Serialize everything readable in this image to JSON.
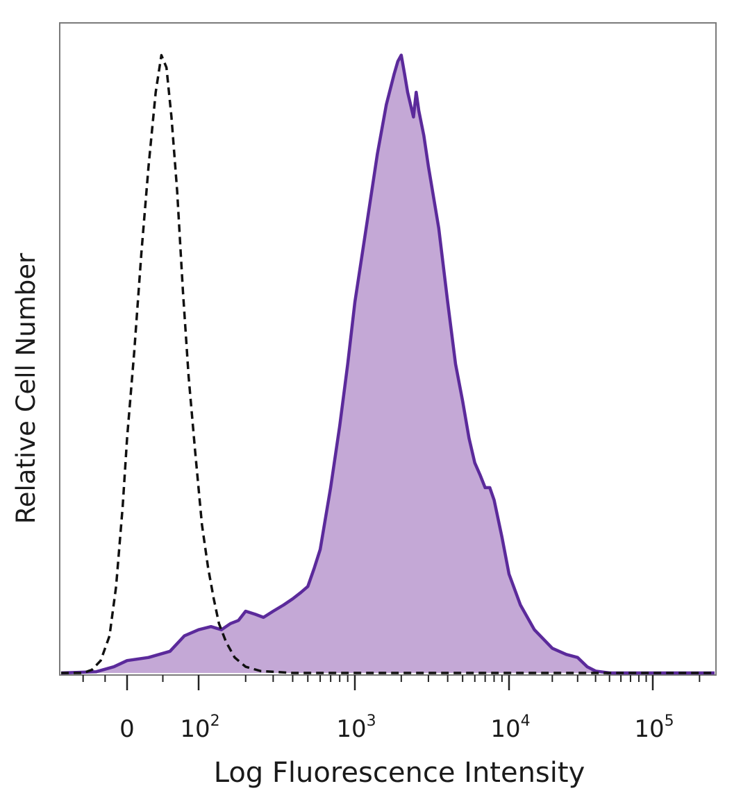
{
  "chart_data": {
    "type": "area",
    "title": "",
    "xlabel": "Log Fluorescence Intensity",
    "ylabel": "Relative Cell Number",
    "x_scale": "biexponential",
    "x_ticks": [
      {
        "value": 0,
        "base": "0",
        "exp": ""
      },
      {
        "value": 100,
        "base": "10",
        "exp": "2"
      },
      {
        "value": 1000,
        "base": "10",
        "exp": "3"
      },
      {
        "value": 10000,
        "base": "10",
        "exp": "4"
      },
      {
        "value": 100000,
        "base": "10",
        "exp": "5"
      }
    ],
    "xlim": [
      -150,
      250000
    ],
    "ylim": [
      0,
      105
    ],
    "grid": false,
    "legend": "none",
    "series": [
      {
        "style": "dashed-outline",
        "color": "#111111",
        "points": [
          [
            -150,
            0
          ],
          [
            -100,
            0
          ],
          [
            -80,
            0.5
          ],
          [
            -60,
            2
          ],
          [
            -40,
            6
          ],
          [
            -25,
            14
          ],
          [
            -10,
            27
          ],
          [
            0,
            38
          ],
          [
            10,
            52
          ],
          [
            20,
            68
          ],
          [
            30,
            82
          ],
          [
            40,
            94
          ],
          [
            48,
            100
          ],
          [
            55,
            98
          ],
          [
            62,
            90
          ],
          [
            70,
            78
          ],
          [
            78,
            62
          ],
          [
            86,
            48
          ],
          [
            95,
            36
          ],
          [
            105,
            24
          ],
          [
            115,
            17
          ],
          [
            125,
            12
          ],
          [
            135,
            8
          ],
          [
            150,
            5
          ],
          [
            170,
            2.5
          ],
          [
            200,
            1
          ],
          [
            250,
            0.3
          ],
          [
            400,
            0
          ],
          [
            250000,
            0
          ]
        ]
      },
      {
        "style": "filled",
        "color": "#5b2a9b",
        "fill": "#c4a8d6",
        "points": [
          [
            -150,
            0
          ],
          [
            -70,
            0.2
          ],
          [
            -30,
            1
          ],
          [
            0,
            2
          ],
          [
            30,
            2.5
          ],
          [
            60,
            3.5
          ],
          [
            80,
            6
          ],
          [
            100,
            7
          ],
          [
            120,
            7.5
          ],
          [
            140,
            7
          ],
          [
            160,
            8
          ],
          [
            180,
            8.5
          ],
          [
            200,
            10
          ],
          [
            230,
            9.5
          ],
          [
            260,
            9
          ],
          [
            300,
            10
          ],
          [
            350,
            11
          ],
          [
            400,
            12
          ],
          [
            450,
            13
          ],
          [
            500,
            14
          ],
          [
            550,
            17
          ],
          [
            600,
            20
          ],
          [
            700,
            30
          ],
          [
            800,
            40
          ],
          [
            900,
            50
          ],
          [
            1000,
            60
          ],
          [
            1200,
            73
          ],
          [
            1400,
            84
          ],
          [
            1600,
            92
          ],
          [
            1800,
            97
          ],
          [
            1900,
            99
          ],
          [
            2000,
            100
          ],
          [
            2100,
            97
          ],
          [
            2200,
            94
          ],
          [
            2400,
            90
          ],
          [
            2500,
            94
          ],
          [
            2600,
            91
          ],
          [
            2800,
            87
          ],
          [
            3000,
            82
          ],
          [
            3500,
            72
          ],
          [
            4000,
            60
          ],
          [
            4500,
            50
          ],
          [
            5000,
            44
          ],
          [
            5500,
            38
          ],
          [
            6000,
            34
          ],
          [
            6500,
            32
          ],
          [
            7000,
            30
          ],
          [
            7500,
            30
          ],
          [
            8000,
            28
          ],
          [
            9000,
            22
          ],
          [
            10000,
            16
          ],
          [
            12000,
            11
          ],
          [
            15000,
            7
          ],
          [
            20000,
            4
          ],
          [
            25000,
            3
          ],
          [
            30000,
            2.5
          ],
          [
            35000,
            1
          ],
          [
            40000,
            0.3
          ],
          [
            50000,
            0
          ],
          [
            250000,
            0
          ]
        ]
      }
    ]
  }
}
